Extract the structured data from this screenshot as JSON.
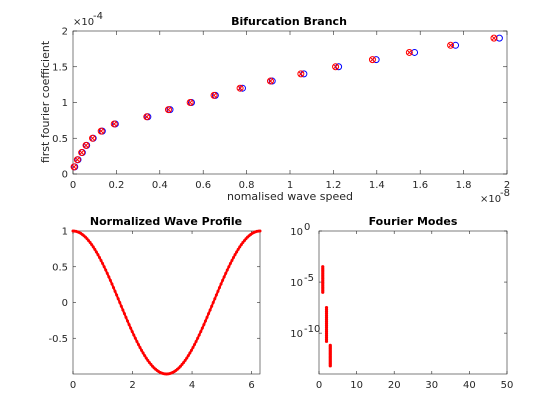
{
  "chart_data": [
    {
      "type": "scatter",
      "title": "Bifurcation Branch",
      "xlabel": "nomalised wave speed",
      "ylabel": "first fourier coefficient",
      "x_multiplier_label": "× 10^-8",
      "y_multiplier_label": "× 10^-4",
      "xlim": [
        0,
        2
      ],
      "ylim": [
        0,
        2
      ],
      "xticks": [
        0,
        0.2,
        0.4,
        0.6,
        0.8,
        1,
        1.2,
        1.4,
        1.6,
        1.8,
        2
      ],
      "xtick_labels": [
        "0",
        "0.2",
        "0.4",
        "0.6",
        "0.8",
        "1",
        "1.2",
        "1.4",
        "1.6",
        "1.8",
        "2"
      ],
      "yticks": [
        0,
        0.5,
        1,
        1.5,
        2
      ],
      "ytick_labels": [
        "0",
        "0.5",
        "1",
        "1.5",
        "2"
      ],
      "colors": {
        "red": "#ff0000",
        "blue": "#0000ff"
      },
      "series": [
        {
          "marker": "x",
          "color": "red",
          "x": [
            0.005,
            0.02,
            0.04,
            0.06,
            0.09,
            0.13,
            0.19,
            0.34,
            0.44,
            0.54,
            0.65,
            0.77,
            0.91,
            1.05,
            1.21,
            1.38,
            1.55,
            1.74,
            1.94
          ],
          "y": [
            0.1,
            0.2,
            0.3,
            0.4,
            0.5,
            0.6,
            0.7,
            0.8,
            0.9,
            1.0,
            1.1,
            1.2,
            1.3,
            1.4,
            1.5,
            1.6,
            1.7,
            1.8,
            1.9
          ]
        },
        {
          "marker": "o",
          "color": "blue",
          "x": [
            0.008,
            0.023,
            0.043,
            0.063,
            0.093,
            0.135,
            0.195,
            0.345,
            0.447,
            0.546,
            0.656,
            0.781,
            0.918,
            1.064,
            1.224,
            1.397,
            1.574,
            1.763,
            1.965
          ],
          "y": [
            0.1,
            0.2,
            0.3,
            0.4,
            0.5,
            0.6,
            0.7,
            0.8,
            0.9,
            1.0,
            1.1,
            1.2,
            1.3,
            1.4,
            1.5,
            1.6,
            1.7,
            1.8,
            1.9
          ]
        }
      ]
    },
    {
      "type": "line",
      "title": "Normalized Wave Profile",
      "xlim": [
        0,
        6.2832
      ],
      "ylim": [
        -1,
        1
      ],
      "xticks": [
        0,
        2,
        4,
        6
      ],
      "xtick_labels": [
        "0",
        "2",
        "4",
        "6"
      ],
      "yticks": [
        -0.5,
        0,
        0.5,
        1
      ],
      "ytick_labels": [
        "-0.5",
        "0",
        "0.5",
        "1"
      ],
      "colors": {
        "line": "#ff0000"
      },
      "series": [
        {
          "function": "cos(x)",
          "x_start": 0,
          "x_end": 6.2832,
          "samples": 120
        }
      ]
    },
    {
      "type": "scatter",
      "title": "Fourier Modes",
      "yscale": "log",
      "xlim": [
        0,
        50
      ],
      "ylim_exponent": [
        -14,
        0
      ],
      "xticks": [
        0,
        10,
        20,
        30,
        40,
        50
      ],
      "xtick_labels": [
        "0",
        "10",
        "20",
        "30",
        "40",
        "50"
      ],
      "ytick_exponents": [
        0,
        -5,
        -10
      ],
      "ytick_labels": [
        {
          "base": "10",
          "exp": "0"
        },
        {
          "base": "10",
          "exp": "-5"
        },
        {
          "base": "10",
          "exp": "-10"
        }
      ],
      "colors": {
        "marker": "#ff0000"
      },
      "series": [
        {
          "marker": "dot",
          "clusters": [
            {
              "x": 1,
              "log10_range": [
                -6.0,
                -3.5
              ],
              "count": 16
            },
            {
              "x": 2,
              "log10_range": [
                -10.8,
                -7.5
              ],
              "count": 18
            },
            {
              "x": 3,
              "log10_range": [
                -13.2,
                -11.2
              ],
              "count": 16
            }
          ]
        }
      ]
    }
  ]
}
